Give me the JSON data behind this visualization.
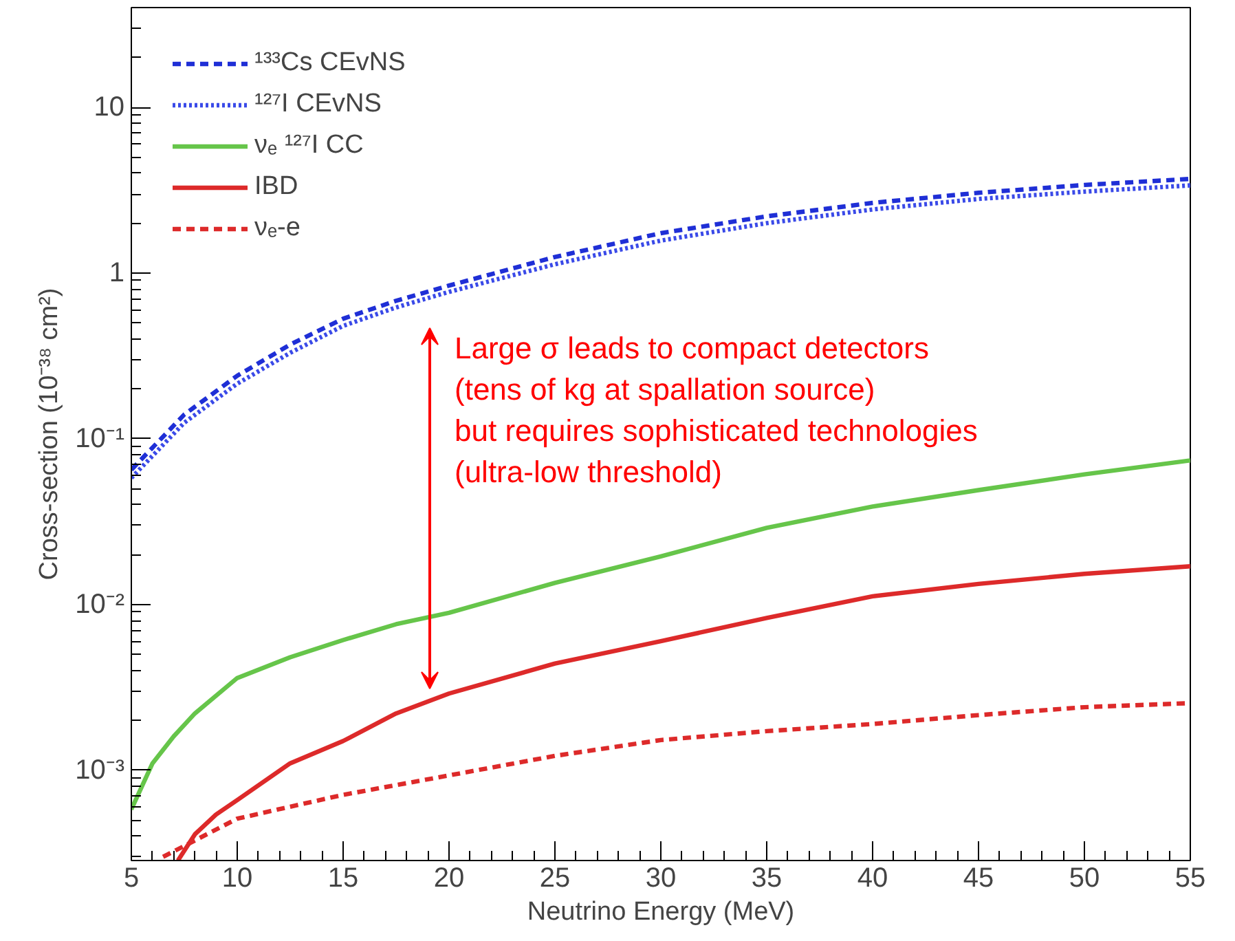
{
  "chart_data": {
    "type": "line",
    "xlabel": "Neutrino Energy (MeV)",
    "ylabel": "Cross-section (10⁻³⁸ cm²)",
    "log": "y",
    "grid": false,
    "legend": "top left",
    "marker": "none",
    "xlim": [
      5,
      55
    ],
    "xticks": [
      5,
      10,
      15,
      20,
      25,
      30,
      35,
      40,
      45,
      50,
      55
    ],
    "ylim": [
      0.000285,
      40
    ],
    "yticks": [
      {
        "value": 0.001,
        "label": "10⁻³"
      },
      {
        "value": 0.01,
        "label": "10⁻²"
      },
      {
        "value": 0.1,
        "label": "10⁻¹"
      },
      1,
      10
    ],
    "series": [
      {
        "name": "¹³³Cs CEvNS",
        "color": "#1f2fd6",
        "line_style": "dashed",
        "x": [
          5,
          7.5,
          10,
          12.5,
          15,
          17.5,
          20,
          25,
          30,
          35,
          40,
          45,
          50,
          55
        ],
        "values": [
          0.065,
          0.14,
          0.24,
          0.37,
          0.53,
          0.68,
          0.84,
          1.25,
          1.74,
          2.2,
          2.65,
          3.05,
          3.4,
          3.7
        ]
      },
      {
        "name": "¹²⁷I CEvNS",
        "color": "#3a4ae8",
        "line_style": "dotted",
        "x": [
          5,
          7.5,
          10,
          12.5,
          15,
          17.5,
          20,
          25,
          30,
          35,
          40,
          45,
          50,
          55
        ],
        "values": [
          0.058,
          0.125,
          0.215,
          0.33,
          0.48,
          0.62,
          0.77,
          1.13,
          1.57,
          2.0,
          2.42,
          2.8,
          3.1,
          3.38
        ]
      },
      {
        "name": "νₑ ¹²⁷I CC",
        "color": "#66c54a",
        "line_style": "solid",
        "x": [
          5,
          6,
          7,
          8,
          10,
          12.5,
          15,
          17.5,
          20,
          25,
          30,
          35,
          40,
          45,
          50,
          55
        ],
        "values": [
          0.00058,
          0.0011,
          0.0016,
          0.0022,
          0.0036,
          0.0048,
          0.0061,
          0.0076,
          0.0089,
          0.0135,
          0.0195,
          0.029,
          0.039,
          0.049,
          0.061,
          0.074
        ]
      },
      {
        "name": "IBD",
        "color": "#dd2a2a",
        "line_style": "solid",
        "x": [
          7.2,
          8,
          9,
          10,
          12.5,
          15,
          17.5,
          20,
          25,
          30,
          35,
          40,
          45,
          50,
          55
        ],
        "values": [
          0.000285,
          0.00041,
          0.00054,
          0.00066,
          0.0011,
          0.0015,
          0.0022,
          0.0029,
          0.0044,
          0.006,
          0.0083,
          0.0112,
          0.0133,
          0.0153,
          0.017
        ]
      },
      {
        "name": "νₑ-e",
        "color": "#dd2a2a",
        "line_style": "dashed",
        "x": [
          6.5,
          10,
          15,
          20,
          25,
          30,
          35,
          40,
          45,
          50,
          55
        ],
        "values": [
          0.0003,
          0.00051,
          0.00071,
          0.00093,
          0.00122,
          0.00152,
          0.00172,
          0.0019,
          0.00215,
          0.0024,
          0.00254
        ]
      }
    ],
    "annotations": [
      "Large σ leads to compact detectors\n(tens of kg at spallation source)\nbut requires sophisticated technologies\n(ultra-low threshold)"
    ]
  }
}
